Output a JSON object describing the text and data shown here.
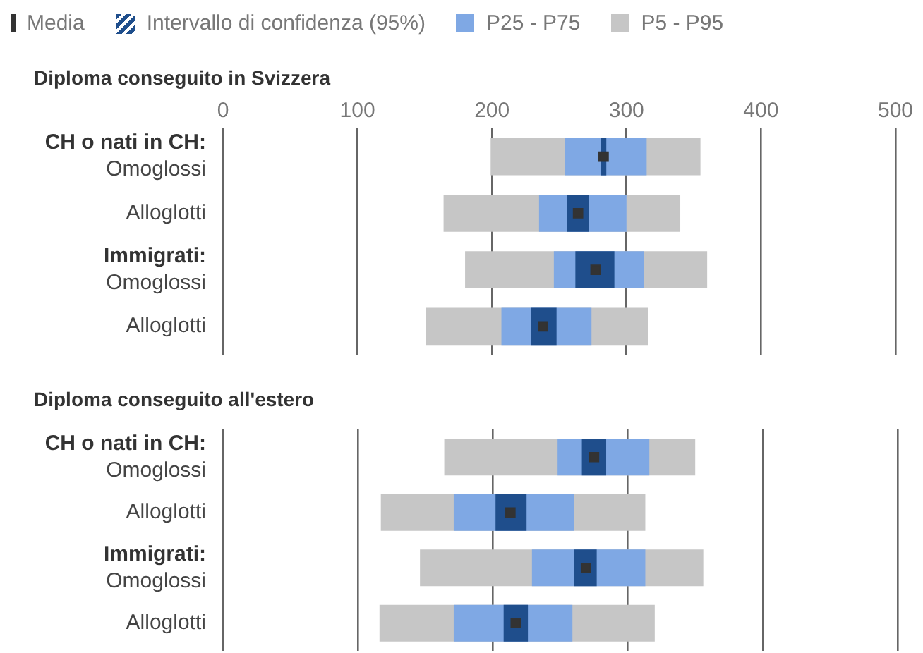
{
  "chart_data": [
    {
      "type": "bar",
      "orientation": "horizontal",
      "title": "Diploma conseguito in Svizzera",
      "categories": [
        "CH o nati in CH:\nOmoglossi",
        "Alloglotti",
        "Immigrati:\nOmoglossi",
        "Alloglotti"
      ],
      "series": [
        {
          "name": "Media",
          "type": "scatter",
          "color": "#333333",
          "marker": "square",
          "values": [
            283,
            264,
            277,
            238
          ]
        },
        {
          "name": "Intervallo di confidenza (95%)",
          "color": "#1f4e8c",
          "base": [
            281,
            256,
            262,
            229
          ],
          "values": [
            4,
            16,
            29,
            19
          ]
        },
        {
          "name": "P25 - P75",
          "color": "#7fa8e4",
          "base": [
            254,
            235,
            246,
            207
          ],
          "values": [
            61,
            65,
            67,
            67
          ]
        },
        {
          "name": "P5 - P95",
          "color": "#c6c6c6",
          "base": [
            199,
            164,
            180,
            151
          ],
          "values": [
            156,
            176,
            180,
            165
          ]
        }
      ],
      "xlim": [
        0,
        500
      ],
      "xticks": [
        0,
        100,
        200,
        300,
        400,
        500
      ],
      "grid": "x",
      "legend": "top"
    },
    {
      "type": "bar",
      "orientation": "horizontal",
      "title": "Diploma conseguito all'estero",
      "categories": [
        "CH o nati in CH:\nOmoglossi",
        "Alloglotti",
        "Immigrati:\nOmoglossi",
        "Alloglotti"
      ],
      "series": [
        {
          "type": "scatter",
          "color": "#333333",
          "marker": "square",
          "values": [
            275,
            213,
            269,
            217
          ]
        },
        {
          "color": "#1f4e8c",
          "base": [
            266,
            202,
            260,
            208
          ],
          "values": [
            18,
            23,
            17,
            18
          ]
        },
        {
          "color": "#7fa8e4",
          "base": [
            248,
            171,
            229,
            171
          ],
          "values": [
            68,
            89,
            84,
            88
          ]
        },
        {
          "color": "#c6c6c6",
          "base": [
            164,
            117,
            146,
            116
          ],
          "values": [
            186,
            196,
            210,
            204
          ]
        }
      ],
      "xlim": [
        0,
        500
      ],
      "xticks": [
        0,
        100,
        200,
        300,
        400,
        500
      ],
      "grid": "x",
      "tick_labels": "y",
      "legend": false
    }
  ]
}
